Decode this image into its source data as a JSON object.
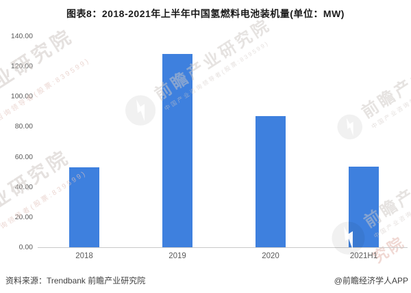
{
  "chart_data": {
    "type": "bar",
    "title": "图表8：2018-2021年上半年中国氢燃料电池装机量(单位：MW)",
    "categories": [
      "2018",
      "2019",
      "2020",
      "2021H1"
    ],
    "values": [
      53.0,
      128.2,
      87.0,
      53.5
    ],
    "xlabel": "",
    "ylabel": "",
    "ylim": [
      0,
      140
    ],
    "ytick_step": 20,
    "ytick_labels": [
      "0.00",
      "20.00",
      "40.00",
      "60.00",
      "80.00",
      "100.00",
      "120.00",
      "140.00"
    ],
    "bar_color": "#3E80DE",
    "grid": false,
    "legend": null
  },
  "footer": {
    "source": "资料来源：Trendbank 前瞻产业研究院",
    "attribution": "@前瞻经济学人APP"
  },
  "watermark": {
    "brand": "前瞻产业研究院",
    "partial_brand": "产业研究院",
    "subtitle": "中国产业咨询领导者(股票:839599)",
    "stock_note": "咨询领导者(股票:839599)",
    "corner": "究院"
  }
}
